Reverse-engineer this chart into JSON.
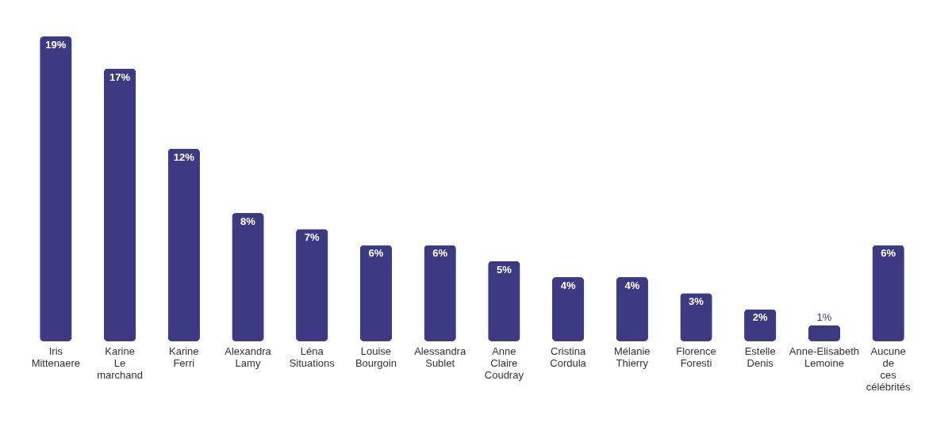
{
  "chart_data": {
    "type": "bar",
    "categories": [
      "Iris Mittenaere",
      "Karine Le marchand",
      "Karine Ferri",
      "Alexandra Lamy",
      "Léna Situations",
      "Louise Bourgoin",
      "Alessandra Sublet",
      "Anne Claire Coudray",
      "Cristina Cordula",
      "Mélanie Thierry",
      "Florence Foresti",
      "Estelle Denis",
      "Anne-Elisabeth Lemoine",
      "Aucune de ces célébrités"
    ],
    "values": [
      19,
      17,
      12,
      8,
      7,
      6,
      6,
      5,
      4,
      4,
      3,
      2,
      1,
      6
    ],
    "value_labels": [
      "19%",
      "17%",
      "12%",
      "8%",
      "7%",
      "6%",
      "6%",
      "5%",
      "4%",
      "4%",
      "3%",
      "2%",
      "1%",
      "6%"
    ],
    "color": "#3b3a82"
  }
}
